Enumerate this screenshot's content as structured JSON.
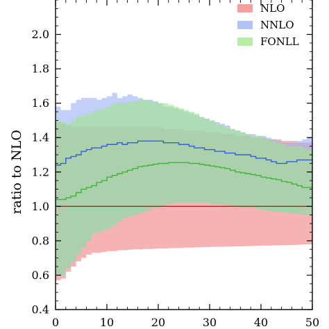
{
  "chart_data": {
    "type": "area",
    "xlim": [
      0,
      50
    ],
    "ylim": [
      0.4,
      2.2
    ],
    "xticks": [
      0,
      10,
      20,
      30,
      40,
      50
    ],
    "yticks": [
      0.4,
      0.6,
      0.8,
      1.0,
      1.2,
      1.4,
      1.6,
      1.8,
      2.0
    ],
    "xtick_labels": [
      "0",
      "10",
      "20",
      "30",
      "40",
      "50"
    ],
    "ytick_labels": [
      "0.4",
      "0.6",
      "0.8",
      "1.0",
      "1.2",
      "1.4",
      "1.6",
      "1.8",
      "2.0"
    ],
    "xlabel": "",
    "ylabel": "ratio to NLO",
    "legend_position": "top-right",
    "x_edges": [
      0,
      1,
      2,
      3,
      4,
      5,
      6,
      7,
      8,
      9,
      10,
      11,
      12,
      13,
      14,
      15,
      16,
      17,
      18,
      19,
      20,
      21,
      22,
      23,
      24,
      25,
      26,
      27,
      28,
      29,
      30,
      31,
      32,
      33,
      34,
      35,
      36,
      37,
      38,
      39,
      40,
      41,
      42,
      43,
      44,
      45,
      46,
      47,
      48,
      49,
      50
    ],
    "series": [
      {
        "name": "NLO",
        "color": "#f08080",
        "style": "band",
        "lower": [
          0.57,
          0.58,
          0.62,
          0.65,
          0.68,
          0.7,
          0.72,
          0.73,
          0.73,
          0.735,
          0.74,
          0.74,
          0.745,
          0.745,
          0.748,
          0.75,
          0.75,
          0.752,
          0.752,
          0.754,
          0.755,
          0.755,
          0.757,
          0.757,
          0.758,
          0.76,
          0.76,
          0.761,
          0.762,
          0.763,
          0.764,
          0.765,
          0.765,
          0.766,
          0.767,
          0.768,
          0.768,
          0.769,
          0.77,
          0.771,
          0.772,
          0.772,
          0.773,
          0.774,
          0.775,
          0.775,
          0.776,
          0.777,
          0.778,
          0.779
        ],
        "upper": [
          1.49,
          1.48,
          1.47,
          1.46,
          1.46,
          1.46,
          1.46,
          1.46,
          1.46,
          1.46,
          1.46,
          1.46,
          1.46,
          1.46,
          1.46,
          1.46,
          1.46,
          1.46,
          1.46,
          1.46,
          1.46,
          1.45,
          1.45,
          1.45,
          1.45,
          1.44,
          1.44,
          1.44,
          1.44,
          1.43,
          1.43,
          1.43,
          1.42,
          1.42,
          1.42,
          1.41,
          1.41,
          1.41,
          1.4,
          1.4,
          1.4,
          1.39,
          1.39,
          1.39,
          1.38,
          1.38,
          1.38,
          1.37,
          1.37,
          1.37
        ],
        "central": [
          1.0,
          1.0,
          1.0,
          1.0,
          1.0,
          1.0,
          1.0,
          1.0,
          1.0,
          1.0,
          1.0,
          1.0,
          1.0,
          1.0,
          1.0,
          1.0,
          1.0,
          1.0,
          1.0,
          1.0,
          1.0,
          1.0,
          1.0,
          1.0,
          1.0,
          1.0,
          1.0,
          1.0,
          1.0,
          1.0,
          1.0,
          1.0,
          1.0,
          1.0,
          1.0,
          1.0,
          1.0,
          1.0,
          1.0,
          1.0,
          1.0,
          1.0,
          1.0,
          1.0,
          1.0,
          1.0,
          1.0,
          1.0,
          1.0,
          1.0
        ],
        "central_color": "#b22222"
      },
      {
        "name": "NNLO",
        "color": "#9aaff5",
        "style": "band",
        "lower": [
          0.6,
          0.6,
          0.64,
          0.68,
          0.72,
          0.76,
          0.8,
          0.84,
          0.85,
          0.86,
          0.87,
          0.89,
          0.91,
          0.93,
          0.94,
          0.95,
          0.96,
          0.97,
          0.98,
          0.99,
          1.0,
          1.01,
          1.015,
          1.02,
          1.02,
          1.02,
          1.02,
          1.02,
          1.02,
          1.02,
          1.015,
          1.01,
          1.01,
          1.005,
          1.0,
          1.0,
          0.995,
          0.99,
          0.99,
          0.985,
          0.98,
          0.975,
          0.97,
          0.97,
          0.965,
          0.96,
          0.96,
          0.955,
          0.95,
          0.95
        ],
        "upper": [
          1.58,
          1.56,
          1.56,
          1.6,
          1.62,
          1.63,
          1.63,
          1.63,
          1.62,
          1.63,
          1.64,
          1.66,
          1.63,
          1.64,
          1.65,
          1.64,
          1.63,
          1.62,
          1.62,
          1.61,
          1.6,
          1.58,
          1.58,
          1.57,
          1.56,
          1.55,
          1.54,
          1.53,
          1.52,
          1.51,
          1.5,
          1.49,
          1.48,
          1.47,
          1.45,
          1.44,
          1.43,
          1.42,
          1.42,
          1.41,
          1.41,
          1.4,
          1.39,
          1.38,
          1.37,
          1.37,
          1.37,
          1.38,
          1.39,
          1.4
        ],
        "central": [
          1.24,
          1.25,
          1.28,
          1.29,
          1.3,
          1.32,
          1.33,
          1.34,
          1.34,
          1.35,
          1.36,
          1.36,
          1.37,
          1.36,
          1.37,
          1.37,
          1.38,
          1.38,
          1.38,
          1.38,
          1.38,
          1.37,
          1.37,
          1.37,
          1.36,
          1.36,
          1.35,
          1.34,
          1.34,
          1.33,
          1.33,
          1.32,
          1.32,
          1.31,
          1.31,
          1.3,
          1.3,
          1.3,
          1.29,
          1.28,
          1.28,
          1.27,
          1.26,
          1.25,
          1.25,
          1.26,
          1.26,
          1.27,
          1.27,
          1.27
        ],
        "central_color": "#2e5de0"
      },
      {
        "name": "FONLL",
        "color": "#9fe58a",
        "style": "band",
        "lower": [
          0.6,
          0.6,
          0.64,
          0.68,
          0.72,
          0.76,
          0.8,
          0.84,
          0.85,
          0.86,
          0.87,
          0.89,
          0.91,
          0.93,
          0.94,
          0.95,
          0.96,
          0.97,
          0.98,
          0.99,
          1.0,
          1.01,
          1.015,
          1.02,
          1.02,
          1.02,
          1.02,
          1.02,
          1.02,
          1.02,
          1.015,
          1.01,
          1.01,
          1.005,
          1.0,
          1.0,
          0.995,
          0.99,
          0.99,
          0.985,
          0.98,
          0.975,
          0.97,
          0.97,
          0.965,
          0.96,
          0.96,
          0.955,
          0.95,
          0.95
        ],
        "upper": [
          1.5,
          1.49,
          1.48,
          1.5,
          1.52,
          1.53,
          1.54,
          1.55,
          1.56,
          1.57,
          1.58,
          1.6,
          1.6,
          1.6,
          1.61,
          1.61,
          1.62,
          1.62,
          1.61,
          1.61,
          1.6,
          1.6,
          1.59,
          1.58,
          1.57,
          1.56,
          1.55,
          1.54,
          1.52,
          1.51,
          1.5,
          1.48,
          1.47,
          1.46,
          1.45,
          1.44,
          1.43,
          1.42,
          1.41,
          1.41,
          1.4,
          1.39,
          1.38,
          1.37,
          1.36,
          1.35,
          1.35,
          1.35,
          1.34,
          1.33
        ],
        "central": [
          1.04,
          1.04,
          1.05,
          1.06,
          1.08,
          1.1,
          1.11,
          1.12,
          1.14,
          1.15,
          1.17,
          1.18,
          1.19,
          1.2,
          1.21,
          1.22,
          1.23,
          1.235,
          1.24,
          1.245,
          1.25,
          1.25,
          1.255,
          1.255,
          1.255,
          1.255,
          1.25,
          1.25,
          1.245,
          1.24,
          1.235,
          1.23,
          1.225,
          1.22,
          1.21,
          1.2,
          1.195,
          1.19,
          1.185,
          1.18,
          1.17,
          1.165,
          1.16,
          1.155,
          1.145,
          1.14,
          1.13,
          1.12,
          1.11,
          1.11
        ],
        "central_color": "#3cb43c"
      }
    ]
  }
}
